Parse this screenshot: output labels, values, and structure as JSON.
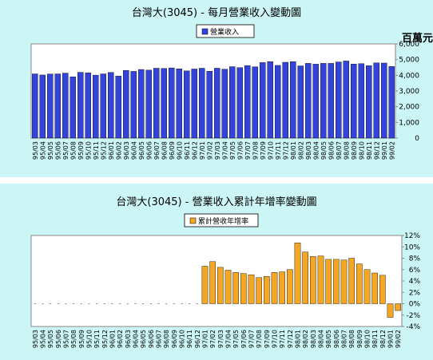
{
  "chart_data": [
    {
      "type": "bar",
      "title": "台灣大(3045) - 每月營業收入變動圖",
      "ylabel": "百萬元",
      "ylim": [
        0,
        6000
      ],
      "yticks": [
        "0",
        "1,000",
        "2,000",
        "3,000",
        "4,000",
        "5,000",
        "6,000"
      ],
      "legend_position": "top",
      "grid": false,
      "bar_color": "#3344dd",
      "categories": [
        "95/03",
        "95/04",
        "95/05",
        "95/06",
        "95/07",
        "95/08",
        "95/09",
        "95/10",
        "95/11",
        "95/12",
        "96/01",
        "96/02",
        "96/03",
        "96/04",
        "96/05",
        "96/06",
        "96/07",
        "96/08",
        "96/09",
        "96/10",
        "96/11",
        "96/12",
        "97/01",
        "97/02",
        "97/03",
        "97/04",
        "97/05",
        "97/06",
        "97/07",
        "97/08",
        "97/09",
        "97/10",
        "97/11",
        "97/12",
        "98/01",
        "98/02",
        "98/03",
        "98/04",
        "98/05",
        "98/06",
        "98/07",
        "98/08",
        "98/09",
        "98/10",
        "98/11",
        "98/12",
        "99/01",
        "99/02"
      ],
      "series": [
        {
          "name": "營業收入",
          "values": [
            4090,
            4020,
            4080,
            4090,
            4140,
            3900,
            4190,
            4160,
            4010,
            4090,
            4180,
            3950,
            4310,
            4250,
            4370,
            4330,
            4450,
            4440,
            4470,
            4410,
            4280,
            4400,
            4450,
            4260,
            4450,
            4390,
            4550,
            4490,
            4620,
            4540,
            4810,
            4870,
            4630,
            4830,
            4870,
            4600,
            4760,
            4710,
            4760,
            4760,
            4850,
            4910,
            4720,
            4740,
            4610,
            4790,
            4780,
            4560
          ]
        }
      ]
    },
    {
      "type": "bar",
      "title": "台灣大(3045) -  營業收入累計年增率變動圖",
      "ylim": [
        -4,
        12
      ],
      "yticks": [
        "-4%",
        "-2%",
        "0%",
        "2%",
        "4%",
        "6%",
        "8%",
        "10%",
        "12%"
      ],
      "legend_position": "top",
      "grid": false,
      "bar_color": "#f5a623",
      "categories": [
        "95/03",
        "95/04",
        "95/05",
        "95/06",
        "95/07",
        "95/08",
        "95/09",
        "95/10",
        "95/11",
        "95/12",
        "96/01",
        "96/02",
        "96/03",
        "96/04",
        "96/05",
        "96/06",
        "96/07",
        "96/08",
        "96/09",
        "96/10",
        "96/11",
        "96/12",
        "97/01",
        "97/02",
        "97/03",
        "97/04",
        "97/05",
        "97/06",
        "97/07",
        "97/08",
        "97/09",
        "97/10",
        "97/11",
        "97/12",
        "98/01",
        "98/02",
        "98/03",
        "98/04",
        "98/05",
        "98/06",
        "98/07",
        "98/08",
        "98/09",
        "98/10",
        "98/11",
        "98/12",
        "99/01",
        "99/02"
      ],
      "series": [
        {
          "name": "累計營收年增率",
          "values": [
            0,
            0,
            0,
            0,
            0,
            0,
            0,
            0,
            0,
            0,
            0,
            0,
            0,
            0,
            0,
            0,
            0,
            0,
            0,
            0,
            0,
            0,
            6.6,
            7.4,
            6.4,
            5.9,
            5.5,
            5.3,
            5.1,
            4.6,
            4.8,
            5.5,
            5.6,
            6.0,
            10.7,
            9.1,
            8.3,
            8.4,
            7.8,
            7.8,
            7.7,
            8.0,
            7.0,
            6.0,
            5.4,
            5.0,
            -2.4,
            -1.2
          ]
        }
      ]
    }
  ]
}
